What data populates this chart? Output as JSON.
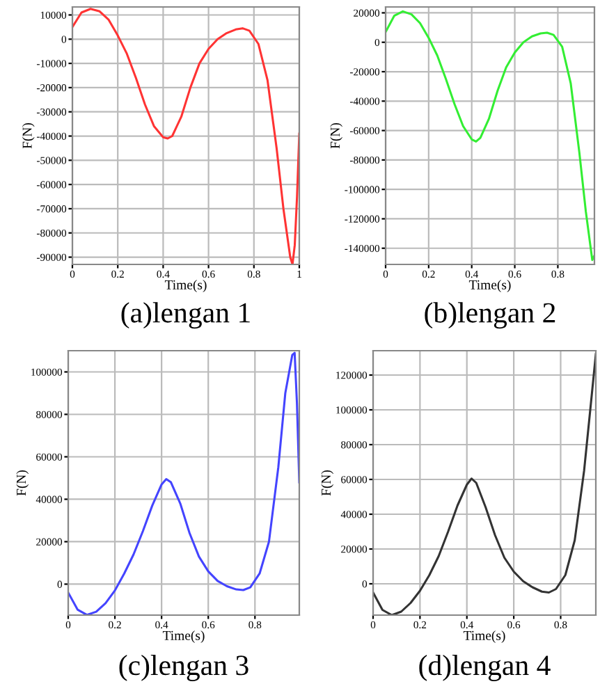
{
  "chart_data": [
    {
      "type": "line",
      "title": "(a)lengan 1",
      "xlabel": "Time(s)",
      "ylabel": "F(N)",
      "xlim": [
        0,
        1
      ],
      "xticks": [
        0,
        0.2,
        0.4,
        0.6,
        0.8,
        1
      ],
      "ylim": [
        -93000,
        13300
      ],
      "yticks": [
        10000,
        0,
        -10000,
        -20000,
        -30000,
        -40000,
        -50000,
        -60000,
        -70000,
        -80000,
        -90000
      ],
      "grid": true,
      "legend": false,
      "x": [
        0,
        0.04,
        0.08,
        0.12,
        0.16,
        0.2,
        0.24,
        0.28,
        0.32,
        0.36,
        0.4,
        0.42,
        0.44,
        0.48,
        0.52,
        0.56,
        0.6,
        0.64,
        0.68,
        0.72,
        0.75,
        0.78,
        0.82,
        0.86,
        0.9,
        0.93,
        0.96,
        0.97,
        0.98,
        0.99,
        1.0
      ],
      "series": [
        {
          "color": "#ff3333",
          "values": [
            5000,
            11000,
            12500,
            11500,
            8000,
            1500,
            -6000,
            -16000,
            -27000,
            -36000,
            -40500,
            -41000,
            -40000,
            -32000,
            -20000,
            -10000,
            -4000,
            0,
            2500,
            4000,
            4500,
            3500,
            -2000,
            -17000,
            -45000,
            -70000,
            -90000,
            -93000,
            -85000,
            -65000,
            -39000
          ]
        }
      ]
    },
    {
      "type": "line",
      "title": "(b)lengan 2",
      "xlabel": "Time(s)",
      "ylabel": "F(N)",
      "xlim": [
        0,
        0.97
      ],
      "xticks": [
        0,
        0.2,
        0.4,
        0.6,
        0.8
      ],
      "ylim": [
        -151000,
        24000
      ],
      "yticks": [
        20000,
        0,
        -20000,
        -40000,
        -60000,
        -80000,
        -100000,
        -120000,
        -140000
      ],
      "grid": true,
      "legend": false,
      "x": [
        0,
        0.04,
        0.08,
        0.12,
        0.16,
        0.2,
        0.24,
        0.28,
        0.32,
        0.36,
        0.4,
        0.42,
        0.44,
        0.48,
        0.52,
        0.56,
        0.6,
        0.64,
        0.68,
        0.72,
        0.75,
        0.78,
        0.82,
        0.86,
        0.9,
        0.93,
        0.96,
        0.97
      ],
      "series": [
        {
          "color": "#33ee33",
          "values": [
            7000,
            18000,
            21000,
            19000,
            13000,
            3000,
            -9000,
            -25000,
            -42000,
            -57000,
            -66000,
            -67500,
            -65000,
            -52000,
            -33000,
            -17000,
            -7000,
            0,
            4000,
            6000,
            6500,
            5000,
            -3000,
            -28000,
            -75000,
            -115000,
            -148000,
            -145000
          ]
        }
      ]
    },
    {
      "type": "line",
      "title": "(c)lengan 3",
      "xlabel": "Time(s)",
      "ylabel": "F(N)",
      "xlim": [
        0,
        0.99
      ],
      "xticks": [
        0,
        0.2,
        0.4,
        0.6,
        0.8
      ],
      "ylim": [
        -14600,
        110000
      ],
      "yticks": [
        0,
        20000,
        40000,
        60000,
        80000,
        100000
      ],
      "grid": true,
      "legend": false,
      "x": [
        0,
        0.04,
        0.08,
        0.12,
        0.16,
        0.2,
        0.24,
        0.28,
        0.32,
        0.36,
        0.4,
        0.42,
        0.44,
        0.48,
        0.52,
        0.56,
        0.6,
        0.64,
        0.68,
        0.72,
        0.75,
        0.78,
        0.82,
        0.86,
        0.9,
        0.93,
        0.96,
        0.97,
        0.98,
        0.99
      ],
      "series": [
        {
          "color": "#4444ff",
          "values": [
            -4000,
            -12000,
            -14500,
            -13000,
            -9000,
            -3000,
            5000,
            14000,
            25000,
            37000,
            47000,
            49500,
            48000,
            38000,
            24000,
            13000,
            6000,
            1500,
            -1000,
            -2500,
            -2800,
            -1500,
            5000,
            20000,
            55000,
            90000,
            108000,
            109000,
            85000,
            48000
          ]
        }
      ]
    },
    {
      "type": "line",
      "title": "(d)lengan 4",
      "xlabel": "Time(s)",
      "ylabel": "F(N)",
      "xlim": [
        0,
        0.95
      ],
      "xticks": [
        0,
        0.2,
        0.4,
        0.6,
        0.8
      ],
      "ylim": [
        -18000,
        134000
      ],
      "yticks": [
        0,
        20000,
        40000,
        60000,
        80000,
        100000,
        120000
      ],
      "grid": true,
      "legend": false,
      "x": [
        0,
        0.04,
        0.08,
        0.12,
        0.16,
        0.2,
        0.24,
        0.28,
        0.32,
        0.36,
        0.4,
        0.42,
        0.44,
        0.48,
        0.52,
        0.56,
        0.6,
        0.64,
        0.68,
        0.72,
        0.75,
        0.78,
        0.82,
        0.86,
        0.9,
        0.93,
        0.95
      ],
      "series": [
        {
          "color": "#333333",
          "values": [
            -5000,
            -15000,
            -18000,
            -16000,
            -11000,
            -4000,
            5000,
            16000,
            30000,
            45000,
            57000,
            60500,
            58000,
            44000,
            28000,
            15000,
            7000,
            1500,
            -2000,
            -4500,
            -5000,
            -3000,
            5000,
            25000,
            65000,
            105000,
            132000
          ]
        }
      ]
    }
  ]
}
